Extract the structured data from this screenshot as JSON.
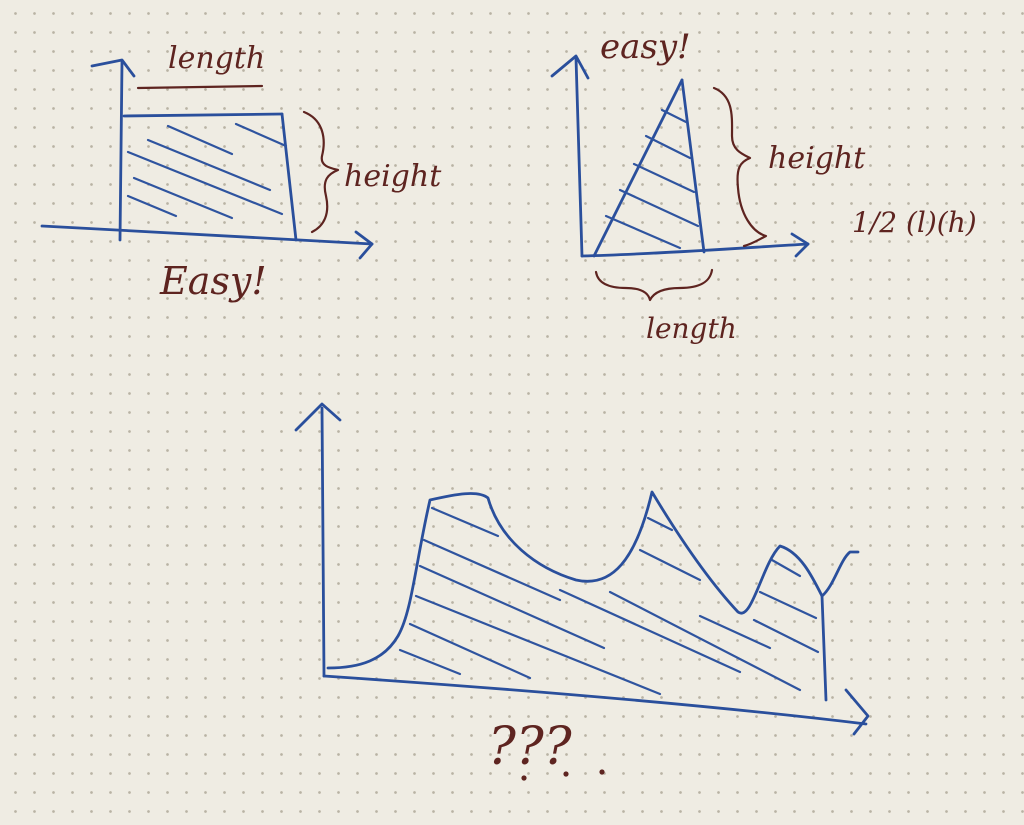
{
  "rectangle_sketch": {
    "top_label": "length",
    "side_label": "height",
    "caption": "Easy!"
  },
  "triangle_sketch": {
    "caption": "easy!",
    "side_label": "height",
    "bottom_label": "length",
    "formula": "1/2 (l)(h)"
  },
  "curve_sketch": {
    "caption": "???"
  },
  "colors": {
    "paper": "#efece3",
    "blue_ink": "#2a4f9c",
    "brown_ink": "#5e2420"
  }
}
